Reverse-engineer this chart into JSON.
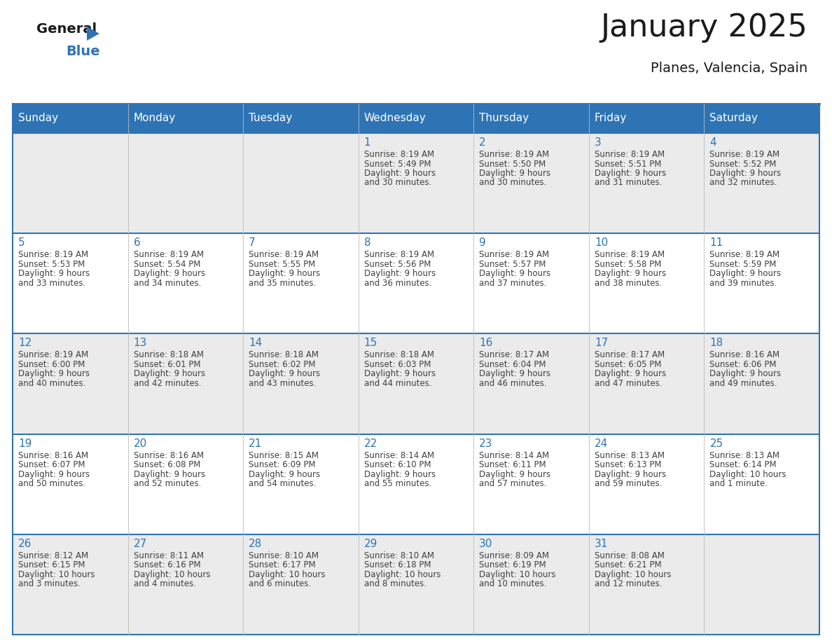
{
  "title": "January 2025",
  "subtitle": "Planes, Valencia, Spain",
  "header_bg_color": "#2E74B5",
  "header_text_color": "#FFFFFF",
  "header_days": [
    "Sunday",
    "Monday",
    "Tuesday",
    "Wednesday",
    "Thursday",
    "Friday",
    "Saturday"
  ],
  "odd_row_bg": "#EBEBEB",
  "even_row_bg": "#FFFFFF",
  "cell_text_color": "#404040",
  "day_num_color": "#2E74B5",
  "border_color": "#2E74B5",
  "grid_color": "#AAAAAA",
  "days": [
    {
      "day": 1,
      "col": 3,
      "row": 0,
      "sunrise": "8:19 AM",
      "sunset": "5:49 PM",
      "daylight": "9 hours and 30 minutes."
    },
    {
      "day": 2,
      "col": 4,
      "row": 0,
      "sunrise": "8:19 AM",
      "sunset": "5:50 PM",
      "daylight": "9 hours and 30 minutes."
    },
    {
      "day": 3,
      "col": 5,
      "row": 0,
      "sunrise": "8:19 AM",
      "sunset": "5:51 PM",
      "daylight": "9 hours and 31 minutes."
    },
    {
      "day": 4,
      "col": 6,
      "row": 0,
      "sunrise": "8:19 AM",
      "sunset": "5:52 PM",
      "daylight": "9 hours and 32 minutes."
    },
    {
      "day": 5,
      "col": 0,
      "row": 1,
      "sunrise": "8:19 AM",
      "sunset": "5:53 PM",
      "daylight": "9 hours and 33 minutes."
    },
    {
      "day": 6,
      "col": 1,
      "row": 1,
      "sunrise": "8:19 AM",
      "sunset": "5:54 PM",
      "daylight": "9 hours and 34 minutes."
    },
    {
      "day": 7,
      "col": 2,
      "row": 1,
      "sunrise": "8:19 AM",
      "sunset": "5:55 PM",
      "daylight": "9 hours and 35 minutes."
    },
    {
      "day": 8,
      "col": 3,
      "row": 1,
      "sunrise": "8:19 AM",
      "sunset": "5:56 PM",
      "daylight": "9 hours and 36 minutes."
    },
    {
      "day": 9,
      "col": 4,
      "row": 1,
      "sunrise": "8:19 AM",
      "sunset": "5:57 PM",
      "daylight": "9 hours and 37 minutes."
    },
    {
      "day": 10,
      "col": 5,
      "row": 1,
      "sunrise": "8:19 AM",
      "sunset": "5:58 PM",
      "daylight": "9 hours and 38 minutes."
    },
    {
      "day": 11,
      "col": 6,
      "row": 1,
      "sunrise": "8:19 AM",
      "sunset": "5:59 PM",
      "daylight": "9 hours and 39 minutes."
    },
    {
      "day": 12,
      "col": 0,
      "row": 2,
      "sunrise": "8:19 AM",
      "sunset": "6:00 PM",
      "daylight": "9 hours and 40 minutes."
    },
    {
      "day": 13,
      "col": 1,
      "row": 2,
      "sunrise": "8:18 AM",
      "sunset": "6:01 PM",
      "daylight": "9 hours and 42 minutes."
    },
    {
      "day": 14,
      "col": 2,
      "row": 2,
      "sunrise": "8:18 AM",
      "sunset": "6:02 PM",
      "daylight": "9 hours and 43 minutes."
    },
    {
      "day": 15,
      "col": 3,
      "row": 2,
      "sunrise": "8:18 AM",
      "sunset": "6:03 PM",
      "daylight": "9 hours and 44 minutes."
    },
    {
      "day": 16,
      "col": 4,
      "row": 2,
      "sunrise": "8:17 AM",
      "sunset": "6:04 PM",
      "daylight": "9 hours and 46 minutes."
    },
    {
      "day": 17,
      "col": 5,
      "row": 2,
      "sunrise": "8:17 AM",
      "sunset": "6:05 PM",
      "daylight": "9 hours and 47 minutes."
    },
    {
      "day": 18,
      "col": 6,
      "row": 2,
      "sunrise": "8:16 AM",
      "sunset": "6:06 PM",
      "daylight": "9 hours and 49 minutes."
    },
    {
      "day": 19,
      "col": 0,
      "row": 3,
      "sunrise": "8:16 AM",
      "sunset": "6:07 PM",
      "daylight": "9 hours and 50 minutes."
    },
    {
      "day": 20,
      "col": 1,
      "row": 3,
      "sunrise": "8:16 AM",
      "sunset": "6:08 PM",
      "daylight": "9 hours and 52 minutes."
    },
    {
      "day": 21,
      "col": 2,
      "row": 3,
      "sunrise": "8:15 AM",
      "sunset": "6:09 PM",
      "daylight": "9 hours and 54 minutes."
    },
    {
      "day": 22,
      "col": 3,
      "row": 3,
      "sunrise": "8:14 AM",
      "sunset": "6:10 PM",
      "daylight": "9 hours and 55 minutes."
    },
    {
      "day": 23,
      "col": 4,
      "row": 3,
      "sunrise": "8:14 AM",
      "sunset": "6:11 PM",
      "daylight": "9 hours and 57 minutes."
    },
    {
      "day": 24,
      "col": 5,
      "row": 3,
      "sunrise": "8:13 AM",
      "sunset": "6:13 PM",
      "daylight": "9 hours and 59 minutes."
    },
    {
      "day": 25,
      "col": 6,
      "row": 3,
      "sunrise": "8:13 AM",
      "sunset": "6:14 PM",
      "daylight": "10 hours and 1 minute."
    },
    {
      "day": 26,
      "col": 0,
      "row": 4,
      "sunrise": "8:12 AM",
      "sunset": "6:15 PM",
      "daylight": "10 hours and 3 minutes."
    },
    {
      "day": 27,
      "col": 1,
      "row": 4,
      "sunrise": "8:11 AM",
      "sunset": "6:16 PM",
      "daylight": "10 hours and 4 minutes."
    },
    {
      "day": 28,
      "col": 2,
      "row": 4,
      "sunrise": "8:10 AM",
      "sunset": "6:17 PM",
      "daylight": "10 hours and 6 minutes."
    },
    {
      "day": 29,
      "col": 3,
      "row": 4,
      "sunrise": "8:10 AM",
      "sunset": "6:18 PM",
      "daylight": "10 hours and 8 minutes."
    },
    {
      "day": 30,
      "col": 4,
      "row": 4,
      "sunrise": "8:09 AM",
      "sunset": "6:19 PM",
      "daylight": "10 hours and 10 minutes."
    },
    {
      "day": 31,
      "col": 5,
      "row": 4,
      "sunrise": "8:08 AM",
      "sunset": "6:21 PM",
      "daylight": "10 hours and 12 minutes."
    }
  ],
  "logo_color_general": "#1a1a1a",
  "logo_color_blue": "#2E74B5",
  "logo_triangle_color": "#2E74B5",
  "title_fontsize": 32,
  "subtitle_fontsize": 14,
  "header_fontsize": 11,
  "day_num_fontsize": 11,
  "cell_fontsize": 8.5
}
